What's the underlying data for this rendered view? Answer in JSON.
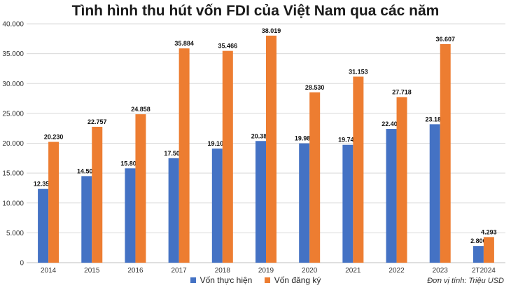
{
  "title": "Tình hình thu hút vốn FDI của Việt Nam qua các năm",
  "unit_note": "Đơn vị tính: Triệu USD",
  "colors": {
    "series_1": "#4472C4",
    "series_2": "#ED7D31",
    "grid": "#d9d9d9",
    "axis_text": "#333333"
  },
  "chart_data": {
    "type": "bar",
    "categories": [
      "2014",
      "2015",
      "2016",
      "2017",
      "2018",
      "2019",
      "2020",
      "2021",
      "2022",
      "2023",
      "2T2024"
    ],
    "series": [
      {
        "name": "Vốn thực hiện",
        "values": [
          12350,
          14500,
          15800,
          17500,
          19100,
          20380,
          19980,
          19740,
          22400,
          23183,
          2800
        ],
        "labels": [
          "12.350",
          "14.500",
          "15.800",
          "17.500",
          "19.100",
          "20.380",
          "19.980",
          "19.740",
          "22.400",
          "23.183",
          "2.800"
        ]
      },
      {
        "name": "Vốn đăng ký",
        "values": [
          20230,
          22757,
          24858,
          35884,
          35466,
          38019,
          28530,
          31153,
          27718,
          36607,
          4293
        ],
        "labels": [
          "20.230",
          "22.757",
          "24.858",
          "35.884",
          "35.466",
          "38.019",
          "28.530",
          "31.153",
          "27.718",
          "36.607",
          "4.293"
        ]
      }
    ],
    "ylim": [
      0,
      40000
    ],
    "yticks": [
      0,
      5000,
      10000,
      15000,
      20000,
      25000,
      30000,
      35000,
      40000
    ],
    "ytick_labels": [
      "0",
      "5.000",
      "10.000",
      "15.000",
      "20.000",
      "25.000",
      "30.000",
      "35.000",
      "40.000"
    ],
    "grid": true,
    "legend_position": "bottom"
  }
}
